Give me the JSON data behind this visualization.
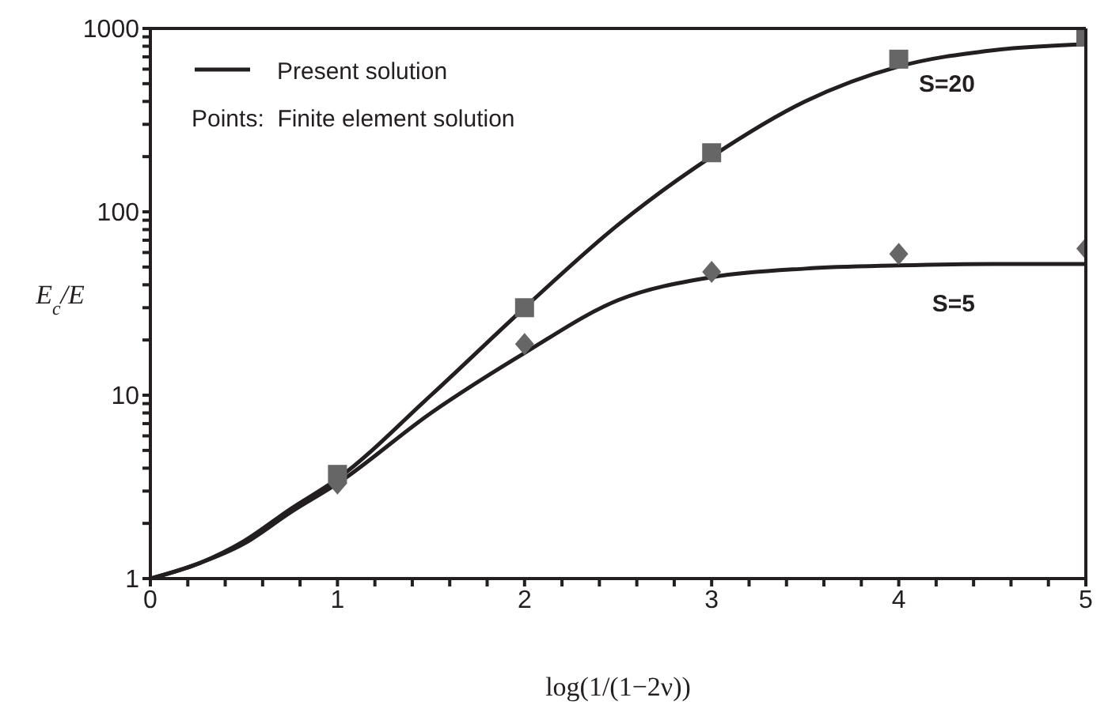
{
  "chart_data": {
    "type": "line",
    "xlabel": "log(1/(1−2ν))",
    "ylabel": "E$_{c}$/E",
    "log": "y",
    "grid": false,
    "annotations": [
      "Present solution",
      "Points:  Finite element solution"
    ],
    "xlim": [
      0,
      5
    ],
    "xticks": [
      0,
      {
        "value": 0.2,
        "label": null
      },
      {
        "value": 0.4,
        "label": null
      },
      {
        "value": 0.6,
        "label": null
      },
      {
        "value": 0.8,
        "label": null
      },
      1,
      {
        "value": 1.2,
        "label": null
      },
      {
        "value": 1.4,
        "label": null
      },
      {
        "value": 1.6,
        "label": null
      },
      {
        "value": 1.8,
        "label": null
      },
      2,
      {
        "value": 2.2,
        "label": null
      },
      {
        "value": 2.4,
        "label": null
      },
      {
        "value": 2.6,
        "label": null
      },
      {
        "value": 2.8,
        "label": null
      },
      3,
      {
        "value": 3.2,
        "label": null
      },
      {
        "value": 3.4,
        "label": null
      },
      {
        "value": 3.6,
        "label": null
      },
      {
        "value": 3.8,
        "label": null
      },
      4,
      {
        "value": 4.2,
        "label": null
      },
      {
        "value": 4.4,
        "label": null
      },
      {
        "value": 4.6,
        "label": null
      },
      {
        "value": 4.8,
        "label": null
      },
      5
    ],
    "ylim": [
      1,
      1000
    ],
    "yticks": [
      1,
      {
        "value": 2,
        "label": null
      },
      {
        "value": 3,
        "label": null
      },
      {
        "value": 4,
        "label": null
      },
      {
        "value": 5,
        "label": null
      },
      {
        "value": 6,
        "label": null
      },
      {
        "value": 7,
        "label": null
      },
      {
        "value": 8,
        "label": null
      },
      {
        "value": 9,
        "label": null
      },
      10,
      {
        "value": 20,
        "label": null
      },
      {
        "value": 30,
        "label": null
      },
      {
        "value": 40,
        "label": null
      },
      {
        "value": 50,
        "label": null
      },
      {
        "value": 60,
        "label": null
      },
      {
        "value": 70,
        "label": null
      },
      {
        "value": 80,
        "label": null
      },
      {
        "value": 90,
        "label": null
      },
      100,
      {
        "value": 200,
        "label": null
      },
      {
        "value": 300,
        "label": null
      },
      {
        "value": 400,
        "label": null
      },
      {
        "value": 500,
        "label": null
      },
      {
        "value": 600,
        "label": null
      },
      {
        "value": 700,
        "label": null
      },
      {
        "value": 800,
        "label": null
      },
      {
        "value": 900,
        "label": null
      },
      1000
    ],
    "series": [
      {
        "name": "S=20",
        "type": "line",
        "color": "#231f20",
        "marker": "none",
        "x": [
          0,
          0.25,
          0.5,
          0.75,
          1,
          1.5,
          2,
          2.5,
          3,
          3.5,
          4,
          4.5,
          5
        ],
        "values": [
          1,
          1.2,
          1.6,
          2.4,
          3.5,
          10,
          30,
          85,
          200,
          400,
          620,
          760,
          820
        ]
      },
      {
        "type": "scatter",
        "color": "#666666",
        "marker": "square",
        "x": [
          1,
          2,
          3,
          4,
          5
        ],
        "values": [
          3.7,
          30,
          210,
          680,
          900
        ]
      },
      {
        "name": "S=5",
        "type": "line",
        "color": "#231f20",
        "marker": "none",
        "x": [
          0,
          0.25,
          0.5,
          0.75,
          1,
          1.5,
          2,
          2.5,
          3,
          3.5,
          4,
          4.5,
          5
        ],
        "values": [
          1,
          1.2,
          1.55,
          2.3,
          3.3,
          8,
          17,
          33,
          44,
          49,
          51,
          52,
          52
        ]
      },
      {
        "type": "scatter",
        "color": "#666666",
        "marker": "diamond",
        "x": [
          1,
          2,
          3,
          4,
          5
        ],
        "values": [
          3.3,
          19,
          47,
          59,
          63
        ]
      }
    ]
  }
}
